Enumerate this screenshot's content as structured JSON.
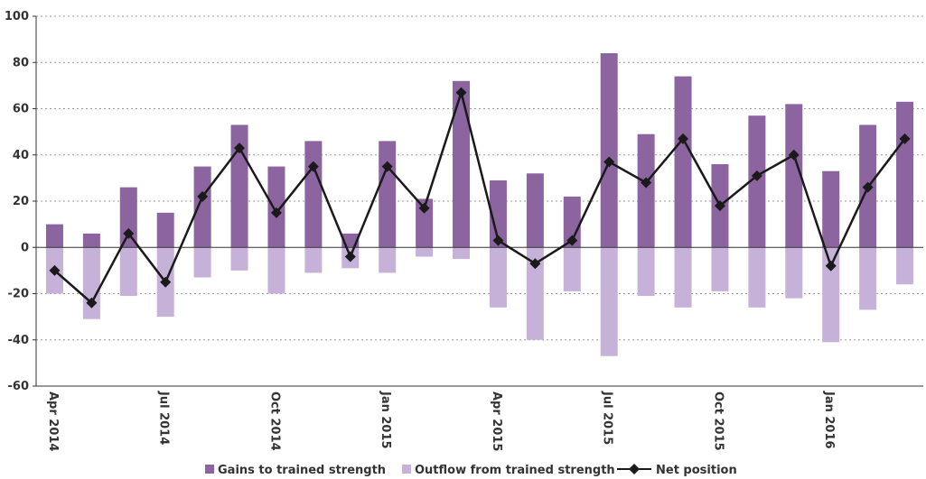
{
  "chart_data": {
    "type": "bar",
    "title": "",
    "xlabel": "",
    "ylabel": "",
    "ylim": [
      -60,
      100
    ],
    "yticks": [
      -60,
      -40,
      -20,
      0,
      20,
      40,
      60,
      80,
      100
    ],
    "grid": true,
    "legend_position": "bottom",
    "categories": [
      "Apr 2014",
      "May 2014",
      "Jun 2014",
      "Jul 2014",
      "Aug 2014",
      "Sep 2014",
      "Oct 2014",
      "Nov 2014",
      "Dec 2014",
      "Jan 2015",
      "Feb 2015",
      "Mar 2015",
      "Apr 2015",
      "May 2015",
      "Jun 2015",
      "Jul 2015",
      "Aug 2015",
      "Sep 2015",
      "Oct 2015",
      "Nov 2015",
      "Dec 2015",
      "Jan 2016",
      "Feb 2016",
      "Mar 2016"
    ],
    "tick_labels": [
      {
        "index": 0,
        "label": "Apr 2014"
      },
      {
        "index": 3,
        "label": "Jul 2014"
      },
      {
        "index": 6,
        "label": "Oct 2014"
      },
      {
        "index": 9,
        "label": "Jan 2015"
      },
      {
        "index": 12,
        "label": "Apr 2015"
      },
      {
        "index": 15,
        "label": "Jul 2015"
      },
      {
        "index": 18,
        "label": "Oct 2015"
      },
      {
        "index": 21,
        "label": "Jan 2016"
      }
    ],
    "series": [
      {
        "name": "Gains to trained strength",
        "type": "bar",
        "color": "#8c64a0",
        "values": [
          10,
          6,
          26,
          15,
          35,
          53,
          35,
          46,
          6,
          46,
          21,
          72,
          29,
          32,
          22,
          84,
          49,
          74,
          36,
          57,
          62,
          33,
          53,
          63
        ]
      },
      {
        "name": "Outflow from trained strength",
        "type": "bar",
        "color": "#c6b2d8",
        "values": [
          -20,
          -31,
          -21,
          -30,
          -13,
          -10,
          -20,
          -11,
          -9,
          -11,
          -4,
          -5,
          -26,
          -40,
          -19,
          -47,
          -21,
          -26,
          -19,
          -26,
          -22,
          -41,
          -27,
          -16
        ]
      },
      {
        "name": "Net position",
        "type": "line",
        "color": "#1a1a1a",
        "values": [
          -10,
          -24,
          6,
          -15,
          22,
          43,
          15,
          35,
          -4,
          35,
          17,
          67,
          3,
          -7,
          3,
          37,
          28,
          47,
          18,
          31,
          40,
          -8,
          26,
          47
        ]
      }
    ]
  }
}
